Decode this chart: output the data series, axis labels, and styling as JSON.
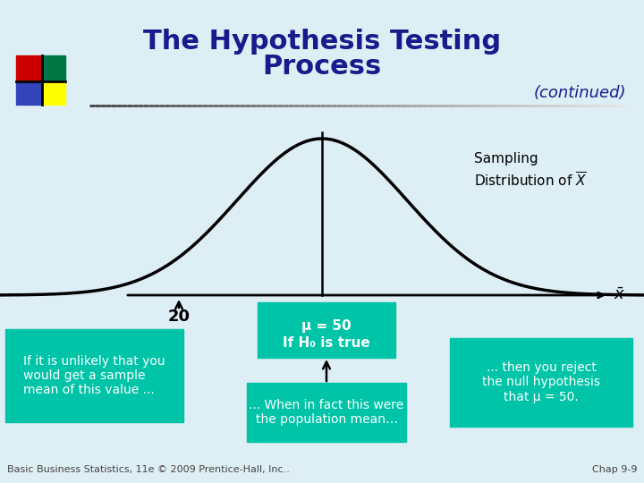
{
  "title_line1": "The Hypothesis Testing",
  "title_line2": "Process",
  "continued": "(continued)",
  "bg_color": "#ddeef5",
  "title_color": "#1a1a8c",
  "title_fontsize": 22,
  "continued_fontsize": 13,
  "bell_color": "black",
  "bell_linewidth": 2.5,
  "axis_color": "black",
  "mu_label": "μ = 50",
  "h0_label": "If H₀ is true",
  "box1_text": "If it is unlikely that you\nwould get a sample\nmean of this value ...",
  "box2_text": "... When in fact this were\nthe population mean…",
  "box3_text": "... then you reject\nthe null hypothesis\nthat μ = 50.",
  "sampling_line1": "Sampling",
  "sampling_line2": "Distribution of",
  "label_20": "20",
  "teal_color": "#00c4a7",
  "white": "white",
  "footer_left": "Basic Business Statistics, 11e © 2009 Prentice-Hall, Inc..",
  "footer_right": "Chap 9-9",
  "footer_fontsize": 8,
  "footer_color": "#444444"
}
